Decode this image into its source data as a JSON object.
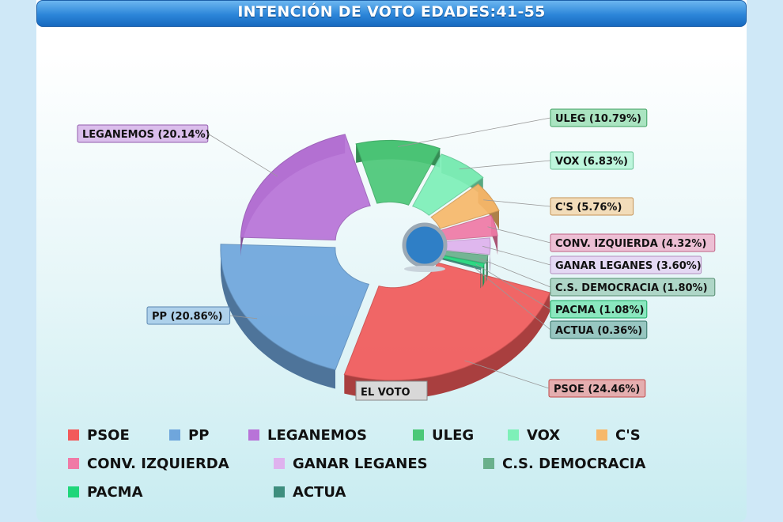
{
  "chart_data": {
    "type": "pie",
    "title": "INTENCIÓN DE VOTO EDADES:41-55",
    "center_label": "EL VOTO",
    "series": [
      {
        "name": "PSOE",
        "value": 24.46,
        "label": "PSOE (24.46%)",
        "color": "#f25a5a"
      },
      {
        "name": "PP",
        "value": 20.86,
        "label": "PP (20.86%)",
        "color": "#6fa6dc"
      },
      {
        "name": "LEGANEMOS",
        "value": 20.14,
        "label": "LEGANEMOS (20.14%)",
        "color": "#b873d8"
      },
      {
        "name": "ULEG",
        "value": 10.79,
        "label": "ULEG (10.79%)",
        "color": "#4cc878"
      },
      {
        "name": "VOX",
        "value": 6.83,
        "label": "VOX (6.83%)",
        "color": "#7ef0b8"
      },
      {
        "name": "C'S",
        "value": 5.76,
        "label": "C'S (5.76%)",
        "color": "#f7b86a"
      },
      {
        "name": "CONV. IZQUIERDA",
        "value": 4.32,
        "label": "CONV. IZQUIERDA (4.32%)",
        "color": "#f07aa6"
      },
      {
        "name": "GANAR LEGANES",
        "value": 3.6,
        "label": "GANAR LEGANES (3.60%)",
        "color": "#dfb2ee"
      },
      {
        "name": "C.S. DEMOCRACIA",
        "value": 1.8,
        "label": "C.S. DEMOCRACIA (1.80%)",
        "color": "#6ab08c"
      },
      {
        "name": "PACMA",
        "value": 1.08,
        "label": "PACMA (1.08%)",
        "color": "#1fd67a"
      },
      {
        "name": "ACTUA",
        "value": 0.36,
        "label": "ACTUA (0.36%)",
        "color": "#3e8e7e"
      }
    ],
    "legend_position": "bottom"
  }
}
